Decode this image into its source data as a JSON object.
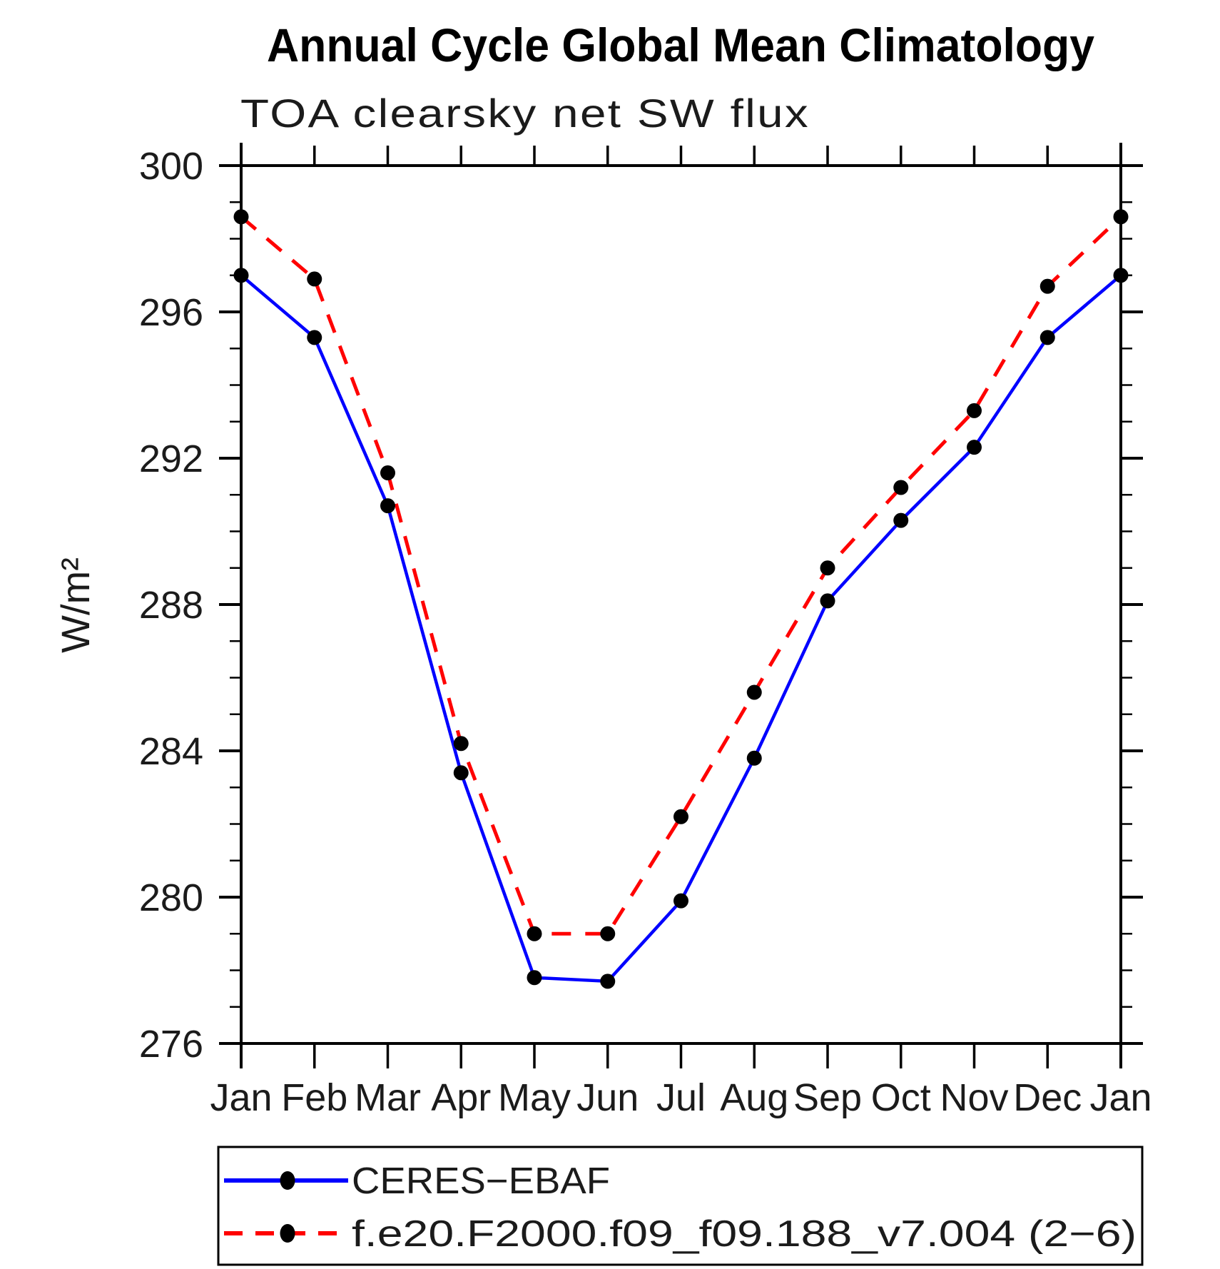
{
  "title": "Annual Cycle Global Mean Climatology",
  "subtitle": "TOA clearsky net SW flux",
  "chart_data": {
    "type": "line",
    "title": "Annual Cycle Global Mean Climatology",
    "subtitle": "TOA clearsky net SW flux",
    "xlabel": "",
    "ylabel": "W/m²",
    "categories": [
      "Jan",
      "Feb",
      "Mar",
      "Apr",
      "May",
      "Jun",
      "Jul",
      "Aug",
      "Sep",
      "Oct",
      "Nov",
      "Dec",
      "Jan"
    ],
    "series": [
      {
        "name": "CERES−EBAF",
        "color": "#0000ff",
        "line_style": "solid",
        "marker": "filled-circle",
        "marker_color": "#000000",
        "values": [
          297.0,
          295.3,
          290.7,
          283.4,
          277.8,
          277.7,
          279.9,
          283.8,
          288.1,
          290.3,
          292.3,
          295.3,
          297.0
        ]
      },
      {
        "name": "f.e20.F2000.f09_f09.188_v7.004 (2−6)",
        "color": "#ff0000",
        "line_style": "dashed",
        "marker": "filled-circle",
        "marker_color": "#000000",
        "values": [
          298.6,
          296.9,
          291.6,
          284.2,
          279.0,
          279.0,
          282.2,
          285.6,
          289.0,
          291.2,
          293.3,
          296.7,
          298.6
        ]
      }
    ],
    "ylim": [
      276,
      300
    ],
    "yticks": [
      276,
      280,
      284,
      288,
      292,
      296,
      300
    ],
    "y_minor_step": 1,
    "grid": false,
    "legend_position": "bottom-left-box"
  },
  "colors": {
    "background": "#ffffff",
    "axis": "#000000",
    "series_obs": "#0000ff",
    "series_model": "#ff0000",
    "marker": "#000000"
  }
}
